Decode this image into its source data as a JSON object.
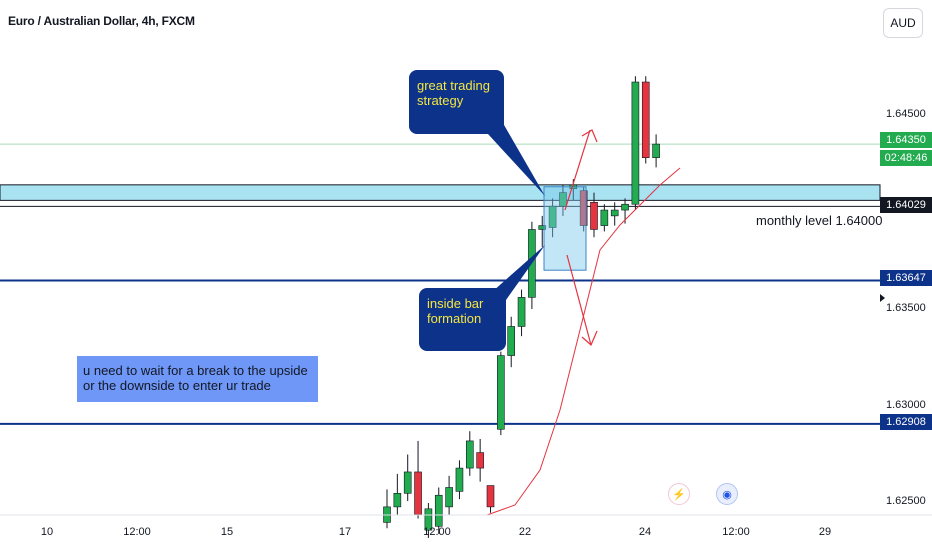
{
  "title": "Euro / Australian Dollar, 4h, FXCM",
  "currency_button": "AUD",
  "y_ticks": [
    "1.64500",
    "1.63500",
    "1.63000",
    "1.62500"
  ],
  "x_ticks": [
    "10",
    "12:00",
    "15",
    "17",
    "12:00",
    "22",
    "24",
    "12:00",
    "29"
  ],
  "price_tags": {
    "current": "1.64350",
    "countdown": "02:48:46",
    "level_1": "1.64029",
    "level_2": "1.63647",
    "level_3": "1.62908"
  },
  "annotations": {
    "strategy_note": "great trading strategy",
    "inside_bar_note": "inside bar formation",
    "wait_note": "u need to wait for a break to the upside or the downside to enter ur trade",
    "monthly_level": "monthly level 1.64000"
  },
  "colors": {
    "up": "#22ab4f",
    "down": "#e5333f",
    "level_line": "#0d3289",
    "zone": "#a9e3f2",
    "note_bg": "#0d3289",
    "note_text": "#f5e642",
    "wait_bg": "#6f97f8"
  },
  "icons": [
    "lightning-icon",
    "globe-icon"
  ],
  "chart_data": {
    "type": "candlestick",
    "title": "Euro / Australian Dollar, 4h, FXCM",
    "ylim": [
      1.6243,
      1.6493
    ],
    "horizontal_levels": [
      1.64029,
      1.63647,
      1.62908
    ],
    "zone": [
      1.6406,
      1.6414
    ],
    "candles": [
      {
        "open": 1.624,
        "high": 1.6257,
        "low": 1.6237,
        "close": 1.6248
      },
      {
        "open": 1.6248,
        "high": 1.6265,
        "low": 1.6244,
        "close": 1.6255
      },
      {
        "open": 1.6255,
        "high": 1.6275,
        "low": 1.6251,
        "close": 1.6266
      },
      {
        "open": 1.6266,
        "high": 1.6282,
        "low": 1.6242,
        "close": 1.6244
      },
      {
        "open": 1.6236,
        "high": 1.625,
        "low": 1.6232,
        "close": 1.6247
      },
      {
        "open": 1.6238,
        "high": 1.6258,
        "low": 1.6234,
        "close": 1.6254
      },
      {
        "open": 1.6248,
        "high": 1.6264,
        "low": 1.6244,
        "close": 1.6258
      },
      {
        "open": 1.6256,
        "high": 1.6272,
        "low": 1.6252,
        "close": 1.6268
      },
      {
        "open": 1.6268,
        "high": 1.6287,
        "low": 1.6264,
        "close": 1.6282
      },
      {
        "open": 1.6276,
        "high": 1.6283,
        "low": 1.6261,
        "close": 1.6268
      },
      {
        "open": 1.6259,
        "high": 1.6259,
        "low": 1.6245,
        "close": 1.6248
      },
      {
        "open": 1.6288,
        "high": 1.6328,
        "low": 1.6285,
        "close": 1.6326
      },
      {
        "open": 1.6326,
        "high": 1.6346,
        "low": 1.632,
        "close": 1.6341
      },
      {
        "open": 1.6341,
        "high": 1.636,
        "low": 1.6336,
        "close": 1.6356
      },
      {
        "open": 1.6356,
        "high": 1.6395,
        "low": 1.635,
        "close": 1.6391
      },
      {
        "open": 1.6391,
        "high": 1.6398,
        "low": 1.6382,
        "close": 1.6393
      },
      {
        "open": 1.6392,
        "high": 1.6407,
        "low": 1.6387,
        "close": 1.6403
      },
      {
        "open": 1.6403,
        "high": 1.6414,
        "low": 1.6398,
        "close": 1.641
      },
      {
        "open": 1.6412,
        "high": 1.6417,
        "low": 1.6406,
        "close": 1.6414
      },
      {
        "open": 1.6411,
        "high": 1.6413,
        "low": 1.639,
        "close": 1.6393
      },
      {
        "open": 1.6405,
        "high": 1.641,
        "low": 1.6387,
        "close": 1.6391
      },
      {
        "open": 1.6393,
        "high": 1.6404,
        "low": 1.639,
        "close": 1.6401
      },
      {
        "open": 1.6398,
        "high": 1.6405,
        "low": 1.6393,
        "close": 1.6401
      },
      {
        "open": 1.6401,
        "high": 1.6407,
        "low": 1.6394,
        "close": 1.6404
      },
      {
        "open": 1.6404,
        "high": 1.647,
        "low": 1.6401,
        "close": 1.6467
      },
      {
        "open": 1.6467,
        "high": 1.647,
        "low": 1.6425,
        "close": 1.6428
      },
      {
        "open": 1.6428,
        "high": 1.644,
        "low": 1.6423,
        "close": 1.6435
      }
    ]
  }
}
